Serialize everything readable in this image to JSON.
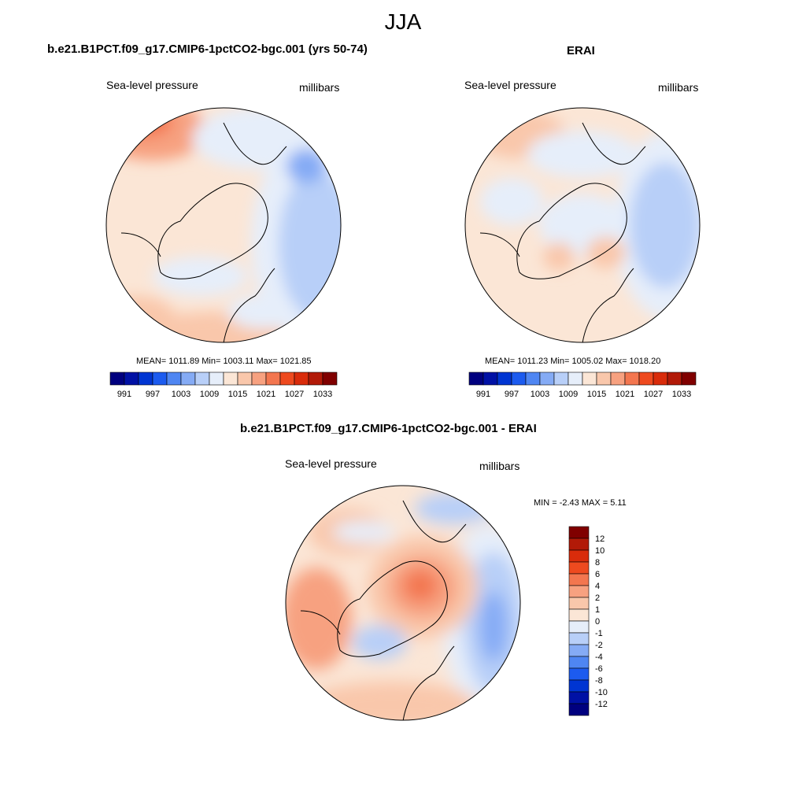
{
  "title": "JJA",
  "panels": [
    {
      "id": "model",
      "title": "b.e21.B1PCT.f09_g17.CMIP6-1pctCO2-bgc.001 (yrs 50-74)",
      "left_label": "Sea-level pressure",
      "right_label": "millibars",
      "stats": "MEAN= 1011.89  Min= 1003.11  Max= 1021.85"
    },
    {
      "id": "obs",
      "title": "ERAI",
      "left_label": "Sea-level pressure",
      "right_label": "millibars",
      "stats": "MEAN= 1011.23  Min= 1005.02  Max= 1018.20"
    },
    {
      "id": "diff",
      "title": "b.e21.B1PCT.f09_g17.CMIP6-1pctCO2-bgc.001 - ERAI",
      "left_label": "Sea-level pressure",
      "right_label": "millibars",
      "stats": "MIN =  -2.43 MAX =   5.11"
    }
  ],
  "abs_colorbar": {
    "colors": [
      "#00007f",
      "#0011a5",
      "#0035d2",
      "#1c5bef",
      "#4f86f2",
      "#85abf5",
      "#b8cff8",
      "#e6eefa",
      "#fbe6d6",
      "#f9c7ab",
      "#f7a180",
      "#f3764f",
      "#ee4a1f",
      "#d92c0b",
      "#b21a08",
      "#800000"
    ],
    "ticks": [
      "991",
      "997",
      "1003",
      "1009",
      "1015",
      "1021",
      "1027",
      "1033"
    ]
  },
  "diff_colorbar": {
    "colors": [
      "#800000",
      "#b21a08",
      "#d92c0b",
      "#ee4a1f",
      "#f3764f",
      "#f7a180",
      "#f9c7ab",
      "#fbe6d6",
      "#e6eefa",
      "#b8cff8",
      "#85abf5",
      "#4f86f2",
      "#1c5bef",
      "#0035d2",
      "#0011a5",
      "#00007f"
    ],
    "ticks": [
      "12",
      "10",
      "8",
      "6",
      "4",
      "2",
      "1",
      "0",
      "-1",
      "-2",
      "-4",
      "-6",
      "-8",
      "-10",
      "-12"
    ]
  }
}
